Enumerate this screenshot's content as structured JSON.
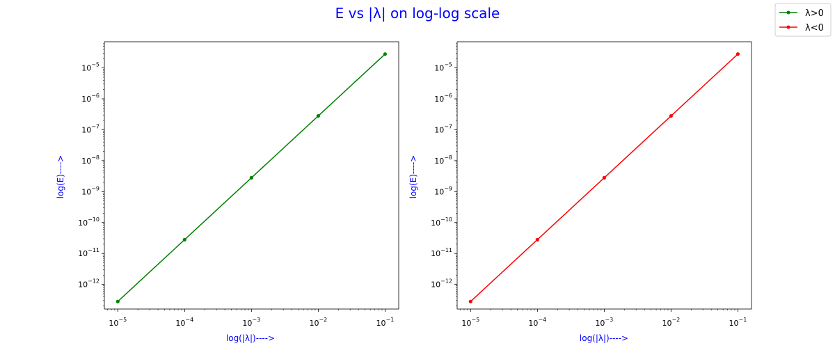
{
  "figure": {
    "title": "E vs |λ| on log-log scale",
    "title_color": "#0000ff",
    "label_color": "#0000ff"
  },
  "legend": {
    "placement": "top-right",
    "items": [
      {
        "label": "λ>0",
        "color": "#008000"
      },
      {
        "label": "λ<0",
        "color": "#ff0000"
      }
    ]
  },
  "chart_data": [
    {
      "type": "line",
      "xscale": "log",
      "yscale": "log",
      "xlabel": "log(|λ|)---->",
      "ylabel": "log(E)---->",
      "xlim": [
        6.3e-06,
        0.16
      ],
      "ylim": [
        1.6e-13,
        7e-05
      ],
      "xticks": [
        {
          "value": 1e-05,
          "mantissa": "10",
          "exp": "−5"
        },
        {
          "value": 0.0001,
          "mantissa": "10",
          "exp": "−4"
        },
        {
          "value": 0.001,
          "mantissa": "10",
          "exp": "−3"
        },
        {
          "value": 0.01,
          "mantissa": "10",
          "exp": "−2"
        },
        {
          "value": 0.1,
          "mantissa": "10",
          "exp": "−1"
        }
      ],
      "yticks": [
        {
          "value": 1e-12,
          "mantissa": "10",
          "exp": "−12"
        },
        {
          "value": 1e-11,
          "mantissa": "10",
          "exp": "−11"
        },
        {
          "value": 1e-10,
          "mantissa": "10",
          "exp": "−10"
        },
        {
          "value": 1e-09,
          "mantissa": "10",
          "exp": "−9"
        },
        {
          "value": 1e-08,
          "mantissa": "10",
          "exp": "−8"
        },
        {
          "value": 1e-07,
          "mantissa": "10",
          "exp": "−7"
        },
        {
          "value": 1e-06,
          "mantissa": "10",
          "exp": "−6"
        },
        {
          "value": 1e-05,
          "mantissa": "10",
          "exp": "−5"
        }
      ],
      "series": [
        {
          "name": "λ>0",
          "color": "#008000",
          "marker": "point",
          "x": [
            1e-05,
            0.0001,
            0.001,
            0.01,
            0.1
          ],
          "y": [
            2.8e-13,
            2.8e-11,
            2.8e-09,
            2.8e-07,
            2.8e-05
          ]
        }
      ]
    },
    {
      "type": "line",
      "xscale": "log",
      "yscale": "log",
      "xlabel": "log(|λ|)---->",
      "ylabel": "log(E)---->",
      "xlim": [
        6.3e-06,
        0.16
      ],
      "ylim": [
        1.6e-13,
        7e-05
      ],
      "xticks": [
        {
          "value": 1e-05,
          "mantissa": "10",
          "exp": "−5"
        },
        {
          "value": 0.0001,
          "mantissa": "10",
          "exp": "−4"
        },
        {
          "value": 0.001,
          "mantissa": "10",
          "exp": "−3"
        },
        {
          "value": 0.01,
          "mantissa": "10",
          "exp": "−2"
        },
        {
          "value": 0.1,
          "mantissa": "10",
          "exp": "−1"
        }
      ],
      "yticks": [
        {
          "value": 1e-12,
          "mantissa": "10",
          "exp": "−12"
        },
        {
          "value": 1e-11,
          "mantissa": "10",
          "exp": "−11"
        },
        {
          "value": 1e-10,
          "mantissa": "10",
          "exp": "−10"
        },
        {
          "value": 1e-09,
          "mantissa": "10",
          "exp": "−9"
        },
        {
          "value": 1e-08,
          "mantissa": "10",
          "exp": "−8"
        },
        {
          "value": 1e-07,
          "mantissa": "10",
          "exp": "−7"
        },
        {
          "value": 1e-06,
          "mantissa": "10",
          "exp": "−6"
        },
        {
          "value": 1e-05,
          "mantissa": "10",
          "exp": "−5"
        }
      ],
      "series": [
        {
          "name": "λ<0",
          "color": "#ff0000",
          "marker": "point",
          "x": [
            1e-05,
            0.0001,
            0.001,
            0.01,
            0.1
          ],
          "y": [
            2.8e-13,
            2.8e-11,
            2.8e-09,
            2.8e-07,
            2.8e-05
          ]
        }
      ]
    }
  ]
}
